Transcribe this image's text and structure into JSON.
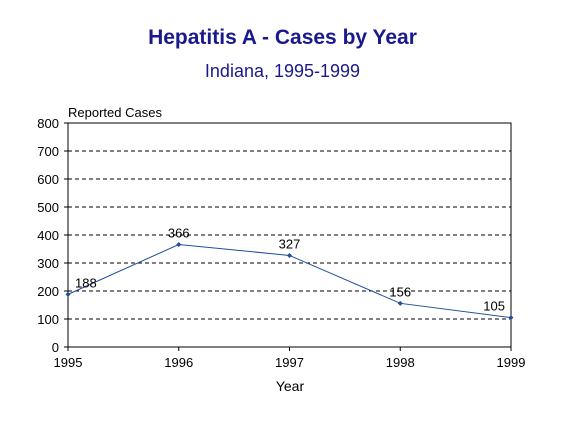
{
  "chart_data": {
    "type": "line",
    "title": "Hepatitis A - Cases by Year",
    "subtitle": "Indiana, 1995-1999",
    "ylabel": "Reported Cases",
    "xlabel": "Year",
    "categories": [
      "1995",
      "1996",
      "1997",
      "1998",
      "1999"
    ],
    "series": [
      {
        "values": [
          188,
          366,
          327,
          156,
          105
        ]
      }
    ],
    "ylim": [
      0,
      800
    ],
    "yticks": [
      0,
      100,
      200,
      300,
      400,
      500,
      600,
      700,
      800
    ],
    "grid": "horizontal dashed",
    "data_labels": true,
    "line_color": "#1f4e9c",
    "title_color": "#1a1a8c"
  }
}
